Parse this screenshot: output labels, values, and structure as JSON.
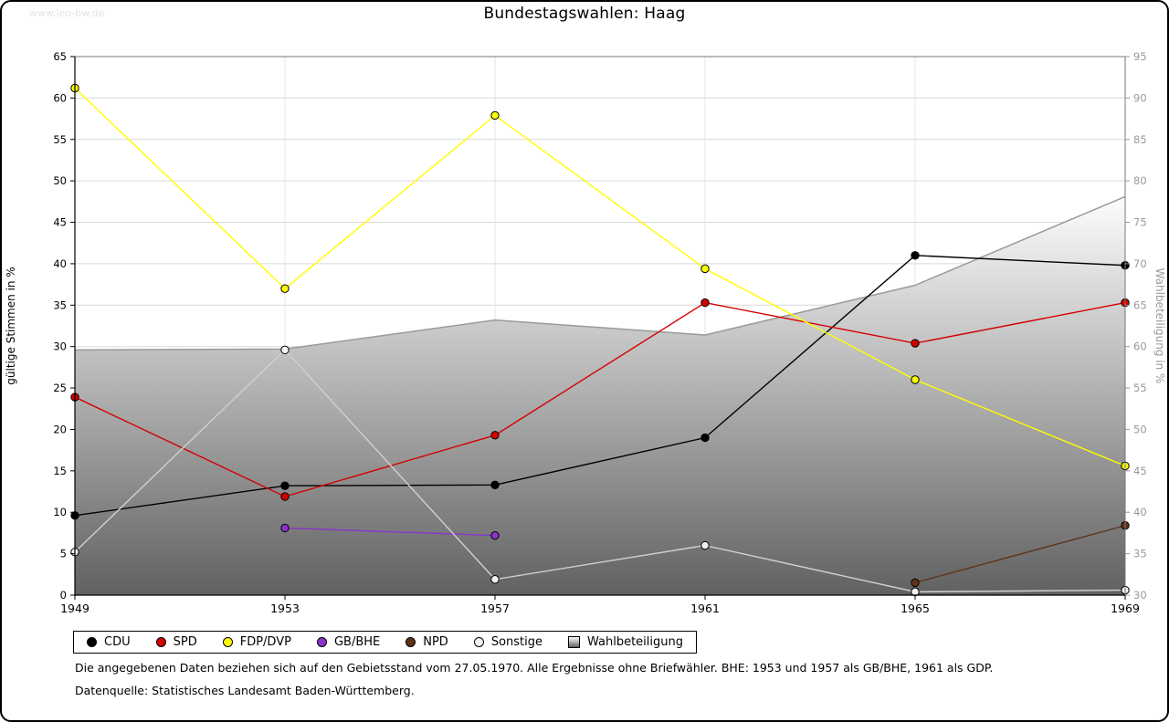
{
  "watermark": "www.leo-bw.de",
  "title": "Bundestagswahlen: Haag",
  "footnotes": [
    "Die angegebenen Daten beziehen sich auf den Gebietsstand vom 27.05.1970. Alle Ergebnisse ohne Briefwähler. BHE: 1953 und 1957 als GB/BHE, 1961 als GDP.",
    "Datenquelle: Statistisches Landesamt Baden-Württemberg."
  ],
  "chart_data": {
    "type": "line",
    "title": "Bundestagswahlen: Haag",
    "x": [
      1949,
      1953,
      1957,
      1961,
      1965,
      1969
    ],
    "left_axis": {
      "label": "gültige Stimmen in %",
      "min": 0,
      "max": 65,
      "step": 5
    },
    "right_axis": {
      "label": "Wahlbeteiligung in %",
      "min": 30,
      "max": 95,
      "step": 5
    },
    "grid": true,
    "legend_position": "bottom",
    "series": [
      {
        "name": "CDU",
        "color": "#000000",
        "marker_fill": "#000000",
        "values": [
          9.6,
          13.2,
          13.3,
          19.0,
          41.0,
          39.8
        ]
      },
      {
        "name": "SPD",
        "color": "#d40000",
        "marker_fill": "#d40000",
        "values": [
          23.9,
          11.9,
          19.3,
          35.3,
          30.4,
          35.3
        ]
      },
      {
        "name": "FDP/DVP",
        "color": "#ffff00",
        "marker_fill": "#ffff00",
        "values": [
          61.2,
          37.0,
          57.9,
          39.4,
          26.0,
          15.6
        ]
      },
      {
        "name": "GB/BHE",
        "color": "#8833cc",
        "marker_fill": "#8833cc",
        "values": [
          null,
          8.1,
          7.2,
          null,
          null,
          null
        ]
      },
      {
        "name": "NPD",
        "color": "#5f3318",
        "marker_fill": "#5f3318",
        "values": [
          null,
          null,
          null,
          null,
          1.5,
          8.4
        ]
      },
      {
        "name": "Sonstige",
        "color": "#d0d0d0",
        "marker_fill": "#f2f2f2",
        "values": [
          5.2,
          29.6,
          1.9,
          6.0,
          0.4,
          0.6
        ]
      }
    ],
    "area_series": {
      "name": "Wahlbeteiligung",
      "axis": "right",
      "values": [
        59.6,
        59.7,
        63.2,
        61.4,
        67.4,
        78.1
      ],
      "line_color": "#9a9a9a",
      "gradient_top": "#fdfdfd",
      "gradient_bottom": "#616161"
    }
  }
}
